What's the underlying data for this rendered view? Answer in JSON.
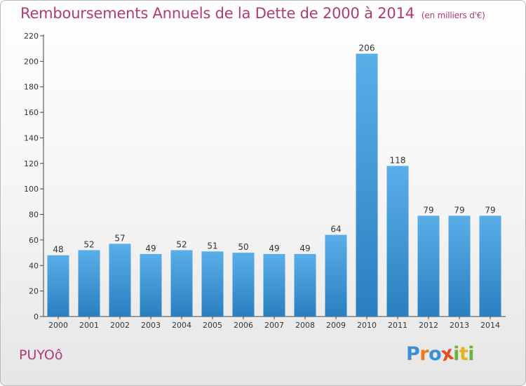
{
  "header": {
    "title": "Remboursements Annuels de la Dette de 2000 à 2014",
    "subtitle": "(en milliers d'€)"
  },
  "footer": {
    "town": "PUYOô",
    "logo_letters": [
      "P",
      "r",
      "o",
      "x",
      "i",
      "t",
      "i"
    ]
  },
  "colors": {
    "title": "#b03a72",
    "bar_top": "#5aaee8",
    "bar_bottom": "#2a7fc0",
    "logo": [
      "#3d8fd1",
      "#e87b1e",
      "#3d8fd1",
      "#e84c1e",
      "#6cb33f",
      "#e8b21e",
      "#6cb33f"
    ]
  },
  "chart_data": {
    "type": "bar",
    "title": "Remboursements Annuels de la Dette de 2000 à 2014",
    "subtitle": "(en milliers d'€)",
    "xlabel": "",
    "ylabel": "",
    "categories": [
      "2000",
      "2001",
      "2002",
      "2003",
      "2004",
      "2005",
      "2006",
      "2007",
      "2008",
      "2009",
      "2010",
      "2011",
      "2012",
      "2013",
      "2014"
    ],
    "values": [
      48,
      52,
      57,
      49,
      52,
      51,
      50,
      49,
      49,
      64,
      206,
      118,
      79,
      79,
      79
    ],
    "ylim": [
      0,
      220
    ],
    "yticks": [
      0,
      20,
      40,
      60,
      80,
      100,
      120,
      140,
      160,
      180,
      200,
      220
    ],
    "grid": false
  }
}
